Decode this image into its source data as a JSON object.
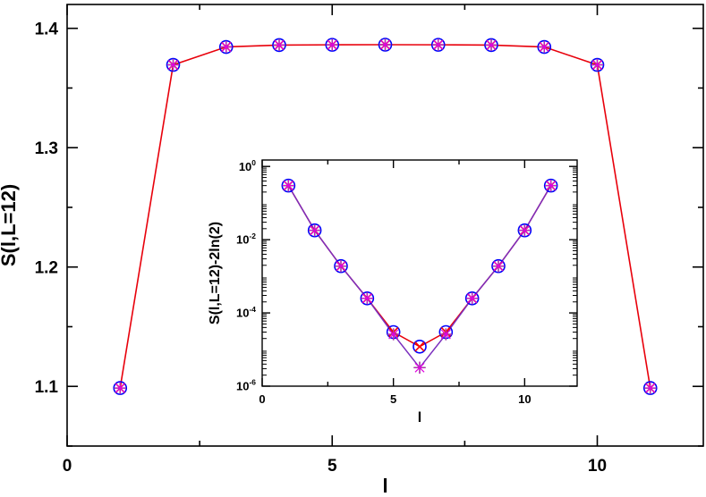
{
  "chart_data": [
    {
      "type": "line",
      "id": "main",
      "xlabel": "l",
      "ylabel": "S(l,L=12)",
      "xlim": [
        0,
        12
      ],
      "ylim": [
        1.05,
        1.42
      ],
      "xticks": [
        0,
        5,
        10
      ],
      "xtick_labels": [
        "0",
        "5",
        "10"
      ],
      "yticks": [
        1.1,
        1.2,
        1.3,
        1.4
      ],
      "ytick_labels": [
        "1.1",
        "1.2",
        "1.3",
        "1.4"
      ],
      "grid": false,
      "x": [
        1,
        2,
        3,
        4,
        5,
        6,
        7,
        8,
        9,
        10,
        11
      ],
      "series": [
        {
          "values": [
            1.0986,
            1.3694,
            1.3844,
            1.386,
            1.3862,
            1.3863,
            1.3862,
            1.386,
            1.3844,
            1.3694,
            1.0986
          ],
          "color": "#e8000b",
          "markers": [
            "circle-blue",
            "cross-red",
            "plus-green",
            "star-magenta"
          ]
        }
      ]
    },
    {
      "type": "line",
      "id": "inset",
      "xlabel": "l",
      "ylabel": "S(l,L=12)-2ln(2)",
      "xlim": [
        0,
        12
      ],
      "ylim": [
        1e-06,
        1.5
      ],
      "yscale": "log",
      "xticks": [
        0,
        5,
        10
      ],
      "xtick_labels": [
        "0",
        "5",
        "10"
      ],
      "yticks": [
        1e-06,
        0.0001,
        0.01,
        1
      ],
      "ytick_labels": [
        {
          "base": "10",
          "exp": "-6"
        },
        {
          "base": "10",
          "exp": "-4"
        },
        {
          "base": "10",
          "exp": "-2"
        },
        {
          "base": "10",
          "exp": "0"
        }
      ],
      "grid": false,
      "x": [
        1,
        2,
        3,
        4,
        5,
        6,
        7,
        8,
        9,
        10,
        11
      ],
      "series": [
        {
          "values": [
            0.3,
            0.018,
            0.0019,
            0.00025,
            3e-05,
            1.2e-05,
            3e-05,
            0.00025,
            0.0019,
            0.018,
            0.3
          ],
          "color": "#e8000b",
          "markers": [
            "circle-blue",
            "cross-red"
          ]
        },
        {
          "values": [
            0.3,
            0.018,
            0.0019,
            0.00025,
            2.6e-05,
            3.2e-06,
            2.6e-05,
            0.00025,
            0.0019,
            0.018,
            0.3
          ],
          "color": "#7b2fbe",
          "markers": [
            "plus-green",
            "star-magenta"
          ]
        }
      ]
    }
  ],
  "colors": {
    "circle": "#0000ff",
    "cross": "#ff0000",
    "plus": "#00c800",
    "star": "#e000e0",
    "red_line": "#e8000b",
    "purple_line": "#7b2fbe"
  }
}
